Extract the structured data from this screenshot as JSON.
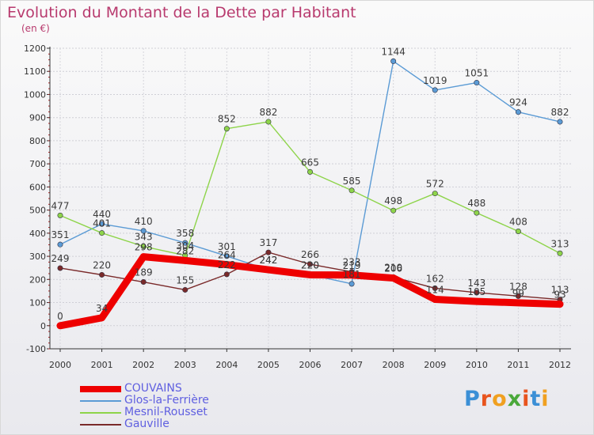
{
  "title": "Evolution du Montant de la Dette par Habitant",
  "unit_label": "(en €)",
  "logo_text": "Proxiti",
  "logo_colors": [
    "#3b8fd6",
    "#e8541e",
    "#f0a020",
    "#4aa83a",
    "#e8541e",
    "#3b8fd6",
    "#f0a020"
  ],
  "chart_data": {
    "type": "line",
    "title": "Evolution du Montant de la Dette par Habitant",
    "ylabel": "(en €)",
    "xlabel": "",
    "ylim": [
      -100,
      1200
    ],
    "yticks": [
      -100,
      0,
      100,
      200,
      300,
      400,
      500,
      600,
      700,
      800,
      900,
      1000,
      1100,
      1200
    ],
    "categories": [
      "2000",
      "2001",
      "2002",
      "2003",
      "2004",
      "2005",
      "2006",
      "2007",
      "2008",
      "2009",
      "2010",
      "2011",
      "2012"
    ],
    "grid": true,
    "legend_position": "bottom-left",
    "series": [
      {
        "name": "COUVAINS",
        "color": "#ee0000",
        "values": [
          0,
          34,
          298,
          282,
          264,
          242,
          220,
          219,
          206,
          114,
          105,
          99,
          93
        ]
      },
      {
        "name": "Glos-la-Ferrière",
        "color": "#5b9bd5",
        "values": [
          351,
          440,
          410,
          358,
          301,
          242,
          220,
          181,
          1144,
          1019,
          1051,
          924,
          882
        ]
      },
      {
        "name": "Mesnil-Rousset",
        "color": "#8ed44a",
        "values": [
          477,
          401,
          343,
          304,
          852,
          882,
          665,
          585,
          498,
          572,
          488,
          408,
          313
        ]
      },
      {
        "name": "Gauville",
        "color": "#7a2a2a",
        "values": [
          249,
          220,
          189,
          155,
          222,
          317,
          266,
          233,
          210,
          162,
          143,
          128,
          113
        ]
      }
    ]
  }
}
